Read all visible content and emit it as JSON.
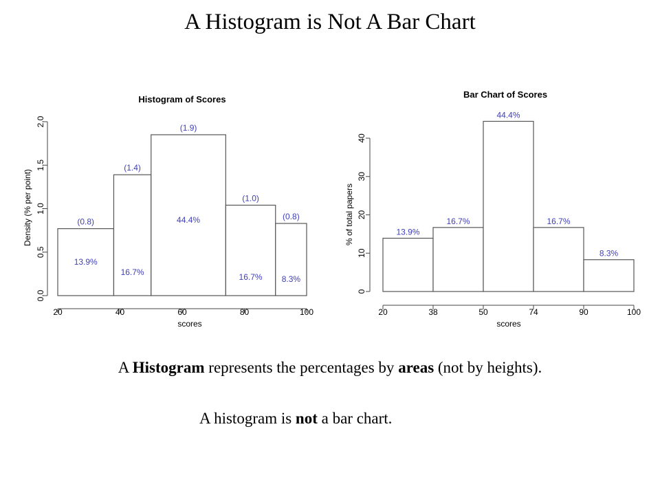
{
  "slide": {
    "title": "A Histogram is Not A Bar Chart",
    "line1": {
      "p1": "A ",
      "b1": "Histogram",
      "p2": " represents the percentages by ",
      "b2": "areas",
      "p3": " (not by heights)."
    },
    "line2": {
      "p1": "A histogram is ",
      "b1": "not",
      "p2": " a bar chart."
    }
  },
  "colors": {
    "data_label": "#3d3dbd",
    "bar_stroke": "#555555"
  },
  "chart_data": [
    {
      "type": "bar",
      "title": "Histogram of Scores",
      "xlabel": "scores",
      "ylabel": "Density (% per point)",
      "xlim": [
        20,
        100
      ],
      "ylim": [
        0,
        2.0
      ],
      "x_ticks": [
        20,
        40,
        60,
        80,
        100
      ],
      "y_ticks": [
        0.0,
        0.5,
        1.0,
        1.5,
        2.0
      ],
      "y_tick_labels": [
        "0.0",
        "0.5",
        "1.0",
        "1.5",
        "2.0"
      ],
      "bins": [
        {
          "from": 20,
          "to": 38,
          "density": 0.77,
          "density_label": "(0.8)",
          "percent_label": "13.9%"
        },
        {
          "from": 38,
          "to": 50,
          "density": 1.39,
          "density_label": "(1.4)",
          "percent_label": "16.7%"
        },
        {
          "from": 50,
          "to": 74,
          "density": 1.85,
          "density_label": "(1.9)",
          "percent_label": "44.4%"
        },
        {
          "from": 74,
          "to": 90,
          "density": 1.04,
          "density_label": "(1.0)",
          "percent_label": "16.7%"
        },
        {
          "from": 90,
          "to": 100,
          "density": 0.83,
          "density_label": "(0.8)",
          "percent_label": "8.3%"
        }
      ],
      "grid": false
    },
    {
      "type": "bar",
      "title": "Bar Chart of Scores",
      "xlabel": "scores",
      "ylabel": "% of total papers",
      "categories": [
        "20-38",
        "38-50",
        "50-74",
        "74-90",
        "90-100"
      ],
      "x_tick_labels": [
        "20",
        "38",
        "50",
        "74",
        "90",
        "100"
      ],
      "values": [
        13.9,
        16.7,
        44.4,
        16.7,
        8.3
      ],
      "value_labels": [
        "13.9%",
        "16.7%",
        "44.4%",
        "16.7%",
        "8.3%"
      ],
      "ylim": [
        0,
        45
      ],
      "y_ticks": [
        0,
        10,
        20,
        30,
        40
      ],
      "y_tick_labels": [
        "0",
        "10",
        "20",
        "30",
        "40"
      ],
      "grid": false
    }
  ]
}
